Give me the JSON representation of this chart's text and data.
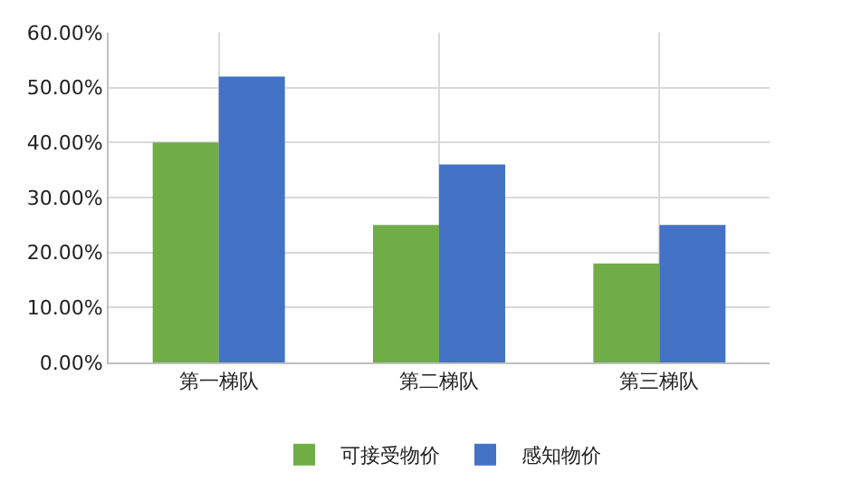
{
  "chart_data": {
    "type": "bar",
    "categories": [
      "第一梯队",
      "第二梯队",
      "第三梯队"
    ],
    "series": [
      {
        "name": "可接受物价",
        "color": "#70ad47",
        "values": [
          40,
          25,
          18
        ]
      },
      {
        "name": "感知物价",
        "color": "#4472c4",
        "values": [
          52,
          36,
          25
        ]
      }
    ],
    "ylim": [
      0,
      60
    ],
    "yticks": [
      {
        "value": 0,
        "label": "0.00%"
      },
      {
        "value": 10,
        "label": "10.00%"
      },
      {
        "value": 20,
        "label": "20.00%"
      },
      {
        "value": 30,
        "label": "30.00%"
      },
      {
        "value": 40,
        "label": "40.00%"
      },
      {
        "value": 50,
        "label": "50.00%"
      },
      {
        "value": 60,
        "label": "60.00%"
      }
    ],
    "grid": true,
    "legend": "bottom"
  }
}
